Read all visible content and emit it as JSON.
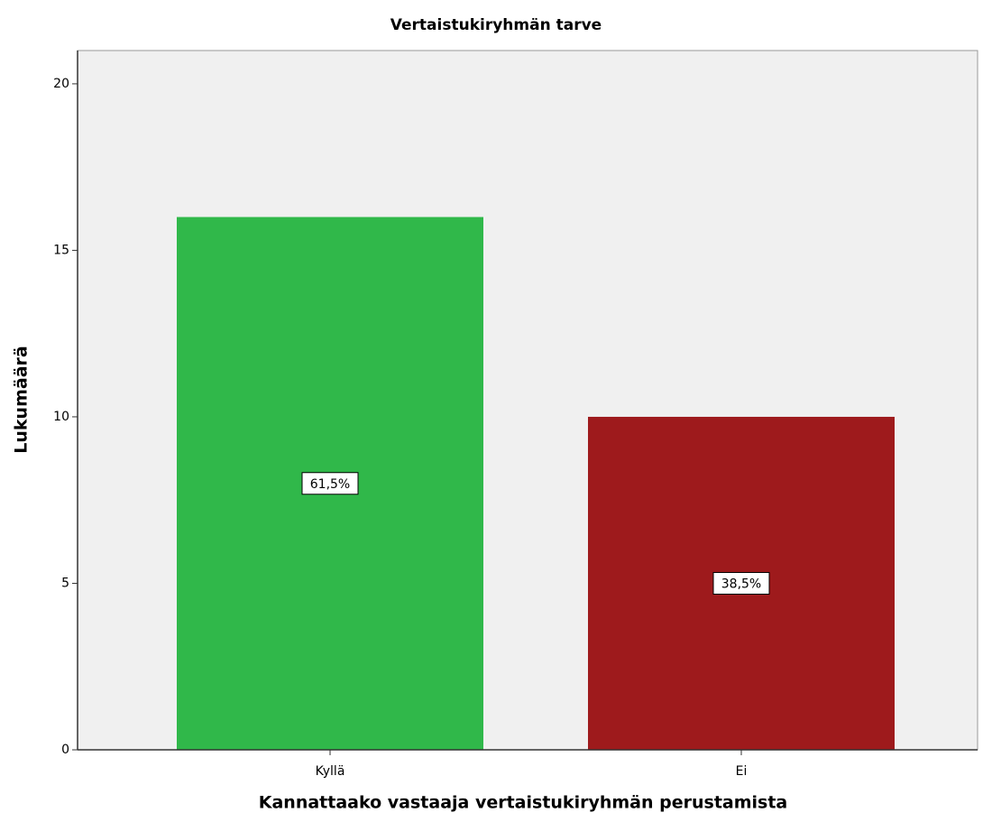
{
  "chart_data": {
    "type": "bar",
    "title": "Vertaistukiryhmän tarve",
    "x_label": "Kannattaako vastaaja vertaistukiryhmän perustamista",
    "y_label": "Lukumäärä",
    "categories": [
      "Kyllä",
      "Ei"
    ],
    "values": [
      16,
      10
    ],
    "colors": [
      "#30b84a",
      "#9e1a1c"
    ],
    "percentages": [
      61.5,
      38.5
    ],
    "percentage_labels": [
      "61,5%",
      "38,5%"
    ],
    "ylim": [
      0,
      21
    ],
    "yticks": [
      0,
      5,
      10,
      15,
      20
    ],
    "grid": false
  }
}
